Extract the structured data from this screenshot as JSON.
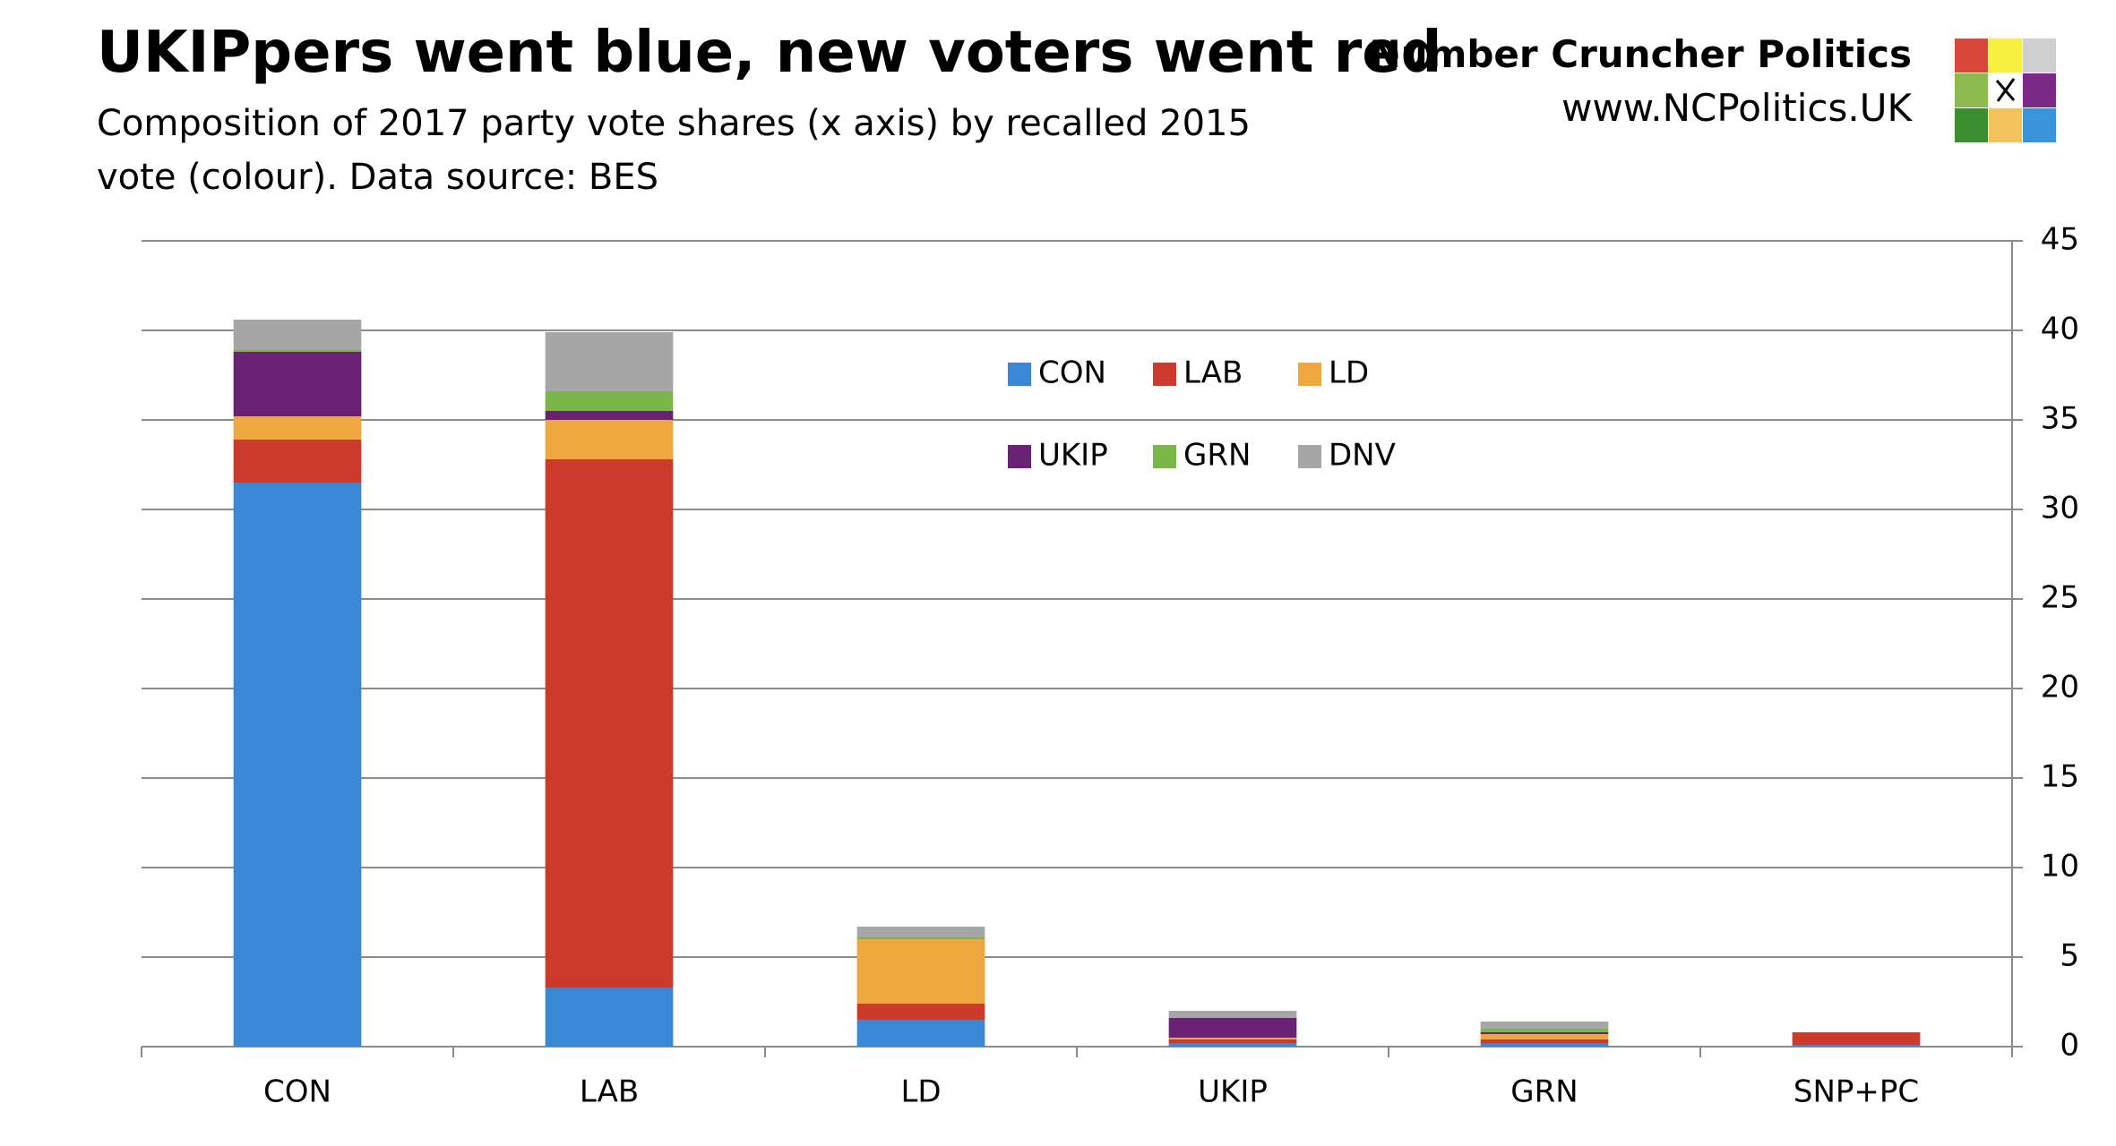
{
  "brand": {
    "name": "Number Cruncher Politics",
    "url": "www.NCPolitics.UK"
  },
  "chart_data": {
    "type": "stacked-bar",
    "title": "UKIPpers went blue, new voters went red",
    "subtitle": "Composition of 2017 party vote shares (x axis) by recalled 2015 vote (colour). Data source: BES",
    "categories": [
      "CON",
      "LAB",
      "LD",
      "UKIP",
      "GRN",
      "SNP+PC"
    ],
    "series": [
      {
        "name": "CON",
        "color": "#3a87d6",
        "values": [
          31.5,
          3.3,
          1.5,
          0.2,
          0.2,
          0.1
        ]
      },
      {
        "name": "LAB",
        "color": "#cc3a2c",
        "values": [
          2.4,
          29.5,
          0.9,
          0.2,
          0.2,
          0.7
        ]
      },
      {
        "name": "LD",
        "color": "#eea83f",
        "values": [
          1.3,
          2.2,
          3.6,
          0.1,
          0.3,
          0
        ]
      },
      {
        "name": "UKIP",
        "color": "#6a2275",
        "values": [
          3.6,
          0.5,
          0,
          1.1,
          0.1,
          0
        ]
      },
      {
        "name": "GRN",
        "color": "#7ab648",
        "values": [
          0.1,
          1.1,
          0.1,
          0,
          0.2,
          0
        ]
      },
      {
        "name": "DNV",
        "color": "#a6a6a6",
        "values": [
          1.7,
          3.3,
          0.6,
          0.4,
          0.4,
          0
        ]
      }
    ],
    "ylim": [
      0,
      45
    ],
    "yticks": [
      0,
      5,
      10,
      15,
      20,
      25,
      30,
      35,
      40,
      45
    ],
    "y_axis_side": "right",
    "grid": true,
    "legend": "top"
  }
}
